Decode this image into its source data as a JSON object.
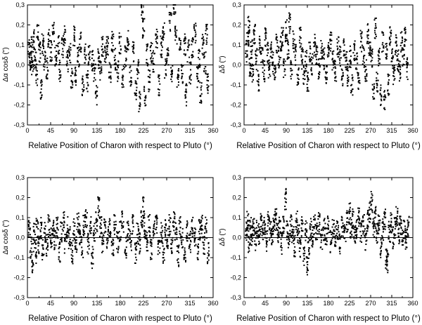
{
  "chart_data": [
    {
      "type": "scatter",
      "id": "top-left",
      "xlabel": "Relative Position of Charon with respect to Pluto (°)",
      "ylabel": "Δα cosδ (\")",
      "xlim": [
        0,
        360
      ],
      "ylim": [
        -0.3,
        0.3
      ],
      "xticks": [
        0,
        45,
        90,
        135,
        180,
        225,
        270,
        315,
        360
      ],
      "yticks": [
        "-0,3",
        "-0,2",
        "-0,1",
        "0,0",
        "0,1",
        "0,2",
        "0,3"
      ],
      "zero_line": true,
      "points": [
        [
          3,
          0.07
        ],
        [
          5,
          0.02
        ],
        [
          8,
          0.09
        ],
        [
          10,
          -0.02
        ],
        [
          12,
          0.12
        ],
        [
          15,
          0.04
        ],
        [
          18,
          -0.05
        ],
        [
          20,
          0.15
        ],
        [
          24,
          0.06
        ],
        [
          27,
          -0.12
        ],
        [
          30,
          0.1
        ],
        [
          33,
          0.03
        ],
        [
          38,
          -0.02
        ],
        [
          42,
          0.13
        ],
        [
          46,
          0.07
        ],
        [
          50,
          0.16
        ],
        [
          55,
          0.05
        ],
        [
          60,
          0.11
        ],
        [
          63,
          -0.03
        ],
        [
          68,
          0.09
        ],
        [
          72,
          0.14
        ],
        [
          77,
          0.02
        ],
        [
          82,
          0.06
        ],
        [
          86,
          -0.07
        ],
        [
          90,
          0.15
        ],
        [
          94,
          -0.05
        ],
        [
          99,
          0.04
        ],
        [
          103,
          0.12
        ],
        [
          108,
          -0.1
        ],
        [
          112,
          0.06
        ],
        [
          116,
          -0.08
        ],
        [
          120,
          0.05
        ],
        [
          125,
          0.02
        ],
        [
          130,
          -0.03
        ],
        [
          134,
          -0.15
        ],
        [
          138,
          0.03
        ],
        [
          142,
          -0.02
        ],
        [
          146,
          0.09
        ],
        [
          151,
          0.06
        ],
        [
          155,
          0.1
        ],
        [
          160,
          -0.04
        ],
        [
          165,
          0.12
        ],
        [
          170,
          0.03
        ],
        [
          175,
          -0.03
        ],
        [
          180,
          0.11
        ],
        [
          185,
          -0.06
        ],
        [
          190,
          0.04
        ],
        [
          195,
          0.12
        ],
        [
          200,
          -0.05
        ],
        [
          205,
          0.07
        ],
        [
          210,
          -0.12
        ],
        [
          214,
          -0.02
        ],
        [
          218,
          -0.18
        ],
        [
          222,
          0.28
        ],
        [
          225,
          0.19
        ],
        [
          228,
          -0.15
        ],
        [
          232,
          0.05
        ],
        [
          236,
          -0.08
        ],
        [
          240,
          0.06
        ],
        [
          245,
          0.02
        ],
        [
          250,
          0.13
        ],
        [
          255,
          -0.1
        ],
        [
          260,
          0.09
        ],
        [
          264,
          0.16
        ],
        [
          268,
          -0.02
        ],
        [
          272,
          0.05
        ],
        [
          277,
          0.22
        ],
        [
          280,
          -0.03
        ],
        [
          285,
          0.29
        ],
        [
          288,
          0.15
        ],
        [
          292,
          -0.07
        ],
        [
          296,
          0.12
        ],
        [
          300,
          -0.04
        ],
        [
          305,
          0.1
        ],
        [
          308,
          -0.15
        ],
        [
          312,
          0.07
        ],
        [
          316,
          -0.04
        ],
        [
          320,
          0.08
        ],
        [
          325,
          0.16
        ],
        [
          330,
          -0.06
        ],
        [
          333,
          0.04
        ],
        [
          336,
          -0.14
        ],
        [
          340,
          0.1
        ],
        [
          344,
          0.01
        ],
        [
          347,
          0.15
        ],
        [
          350,
          -0.1
        ]
      ]
    },
    {
      "type": "scatter",
      "id": "top-right",
      "xlabel": "Relative Position of Charon with respect to Pluto (°)",
      "ylabel": "Δδ (\")",
      "xlim": [
        0,
        360
      ],
      "ylim": [
        -0.3,
        0.3
      ],
      "xticks": [
        0,
        45,
        90,
        135,
        180,
        225,
        270,
        315,
        360
      ],
      "yticks": [
        "-0,3",
        "-0,2",
        "-0,1",
        "0,0",
        "0,1",
        "0,2",
        "0,3"
      ],
      "zero_line": true,
      "points": [
        [
          5,
          0.07
        ],
        [
          8,
          0.12
        ],
        [
          10,
          0.21
        ],
        [
          13,
          -0.01
        ],
        [
          16,
          0.08
        ],
        [
          18,
          -0.05
        ],
        [
          22,
          0.15
        ],
        [
          26,
          0.03
        ],
        [
          30,
          -0.08
        ],
        [
          34,
          0.1
        ],
        [
          38,
          0.04
        ],
        [
          42,
          -0.03
        ],
        [
          46,
          0.13
        ],
        [
          50,
          0.06
        ],
        [
          54,
          -0.02
        ],
        [
          58,
          0.09
        ],
        [
          62,
          0.01
        ],
        [
          66,
          -0.06
        ],
        [
          70,
          0.11
        ],
        [
          74,
          0.04
        ],
        [
          78,
          0.09
        ],
        [
          82,
          0.14
        ],
        [
          86,
          -0.02
        ],
        [
          90,
          0.17
        ],
        [
          94,
          0.07
        ],
        [
          97,
          0.21
        ],
        [
          101,
          -0.03
        ],
        [
          106,
          0.12
        ],
        [
          110,
          0.05
        ],
        [
          115,
          -0.06
        ],
        [
          120,
          0.14
        ],
        [
          124,
          0.03
        ],
        [
          128,
          -0.05
        ],
        [
          132,
          0.02
        ],
        [
          136,
          -0.09
        ],
        [
          140,
          0.06
        ],
        [
          145,
          0.0
        ],
        [
          150,
          0.1
        ],
        [
          155,
          0.04
        ],
        [
          160,
          -0.02
        ],
        [
          165,
          0.08
        ],
        [
          170,
          0.03
        ],
        [
          175,
          -0.04
        ],
        [
          180,
          0.07
        ],
        [
          185,
          0.11
        ],
        [
          190,
          0.02
        ],
        [
          195,
          -0.03
        ],
        [
          200,
          0.09
        ],
        [
          205,
          0.05
        ],
        [
          210,
          -0.06
        ],
        [
          214,
          0.08
        ],
        [
          218,
          0.02
        ],
        [
          222,
          -0.05
        ],
        [
          226,
          0.04
        ],
        [
          230,
          -0.1
        ],
        [
          235,
          0.07
        ],
        [
          240,
          0.01
        ],
        [
          245,
          -0.07
        ],
        [
          250,
          0.12
        ],
        [
          255,
          0.04
        ],
        [
          260,
          -0.03
        ],
        [
          264,
          0.15
        ],
        [
          268,
          0.09
        ],
        [
          272,
          0.03
        ],
        [
          276,
          -0.12
        ],
        [
          280,
          0.18
        ],
        [
          284,
          -0.08
        ],
        [
          288,
          0.05
        ],
        [
          292,
          -0.15
        ],
        [
          296,
          0.12
        ],
        [
          300,
          -0.17
        ],
        [
          304,
          0.06
        ],
        [
          308,
          -0.1
        ],
        [
          312,
          0.15
        ],
        [
          316,
          0.03
        ],
        [
          320,
          -0.05
        ],
        [
          324,
          0.1
        ],
        [
          328,
          0.02
        ],
        [
          332,
          -0.03
        ],
        [
          336,
          0.12
        ],
        [
          340,
          0.05
        ],
        [
          344,
          0.14
        ],
        [
          348,
          -0.02
        ]
      ]
    },
    {
      "type": "scatter",
      "id": "bottom-left",
      "xlabel": "Relative Position of Charon with respect to Pluto (°)",
      "ylabel": "Δα cosδ (\")",
      "xlim": [
        0,
        360
      ],
      "ylim": [
        -0.3,
        0.3
      ],
      "xticks": [
        0,
        45,
        90,
        135,
        180,
        225,
        270,
        315,
        360
      ],
      "yticks": [
        "-0,3",
        "-0,2",
        "-0,1",
        "0,0",
        "0,1",
        "0,2",
        "0,3"
      ],
      "zero_line": true,
      "points": [
        [
          4,
          0.03
        ],
        [
          7,
          -0.05
        ],
        [
          10,
          -0.12
        ],
        [
          13,
          0.02
        ],
        [
          16,
          -0.08
        ],
        [
          19,
          0.04
        ],
        [
          22,
          -0.03
        ],
        [
          26,
          0.05
        ],
        [
          30,
          -0.06
        ],
        [
          34,
          0.02
        ],
        [
          38,
          -0.04
        ],
        [
          42,
          0.06
        ],
        [
          46,
          0.0
        ],
        [
          50,
          0.04
        ],
        [
          54,
          -0.02
        ],
        [
          58,
          0.05
        ],
        [
          62,
          -0.07
        ],
        [
          66,
          0.03
        ],
        [
          70,
          0.08
        ],
        [
          74,
          -0.03
        ],
        [
          78,
          0.05
        ],
        [
          82,
          0.0
        ],
        [
          86,
          -0.08
        ],
        [
          90,
          0.04
        ],
        [
          94,
          -0.04
        ],
        [
          98,
          0.07
        ],
        [
          102,
          0.02
        ],
        [
          106,
          -0.05
        ],
        [
          110,
          0.06
        ],
        [
          114,
          0.1
        ],
        [
          118,
          -0.03
        ],
        [
          122,
          0.05
        ],
        [
          126,
          -0.1
        ],
        [
          130,
          0.03
        ],
        [
          134,
          0.08
        ],
        [
          138,
          0.15
        ],
        [
          142,
          0.05
        ],
        [
          146,
          -0.02
        ],
        [
          150,
          0.06
        ],
        [
          155,
          0.0
        ],
        [
          160,
          0.04
        ],
        [
          165,
          -0.04
        ],
        [
          170,
          0.07
        ],
        [
          175,
          -0.02
        ],
        [
          180,
          0.03
        ],
        [
          185,
          0.08
        ],
        [
          190,
          -0.05
        ],
        [
          195,
          0.04
        ],
        [
          200,
          -0.01
        ],
        [
          205,
          0.06
        ],
        [
          210,
          -0.08
        ],
        [
          214,
          0.02
        ],
        [
          218,
          -0.03
        ],
        [
          222,
          0.08
        ],
        [
          225,
          0.15
        ],
        [
          228,
          0.05
        ],
        [
          232,
          -0.02
        ],
        [
          236,
          0.06
        ],
        [
          240,
          -0.06
        ],
        [
          245,
          0.03
        ],
        [
          250,
          0.07
        ],
        [
          255,
          -0.04
        ],
        [
          260,
          0.02
        ],
        [
          264,
          -0.08
        ],
        [
          268,
          0.04
        ],
        [
          272,
          0.0
        ],
        [
          276,
          0.06
        ],
        [
          280,
          -0.03
        ],
        [
          284,
          0.09
        ],
        [
          288,
          0.03
        ],
        [
          292,
          -0.09
        ],
        [
          296,
          0.05
        ],
        [
          300,
          0.0
        ],
        [
          305,
          -0.07
        ],
        [
          310,
          0.03
        ],
        [
          315,
          -0.02
        ],
        [
          320,
          0.06
        ],
        [
          325,
          0.01
        ],
        [
          330,
          -0.06
        ],
        [
          334,
          0.04
        ],
        [
          338,
          0.07
        ],
        [
          342,
          -0.03
        ],
        [
          346,
          0.05
        ],
        [
          350,
          -0.08
        ]
      ]
    },
    {
      "type": "scatter",
      "id": "bottom-right",
      "xlabel": "Relative Position of Charon with respect to Pluto (°)",
      "ylabel": "Δδ (\")",
      "xlim": [
        0,
        360
      ],
      "ylim": [
        -0.3,
        0.3
      ],
      "xticks": [
        0,
        45,
        90,
        135,
        180,
        225,
        270,
        315,
        360
      ],
      "yticks": [
        "-0,3",
        "-0,2",
        "-0,1",
        "0,0",
        "0,1",
        "0,2",
        "0,3"
      ],
      "zero_line": true,
      "points": [
        [
          5,
          0.04
        ],
        [
          8,
          0.08
        ],
        [
          11,
          -0.02
        ],
        [
          14,
          0.05
        ],
        [
          17,
          0.01
        ],
        [
          20,
          0.06
        ],
        [
          24,
          -0.01
        ],
        [
          28,
          0.04
        ],
        [
          32,
          0.02
        ],
        [
          36,
          0.07
        ],
        [
          40,
          0.03
        ],
        [
          44,
          0.05
        ],
        [
          48,
          -0.02
        ],
        [
          52,
          0.08
        ],
        [
          56,
          0.04
        ],
        [
          60,
          0.01
        ],
        [
          64,
          0.06
        ],
        [
          68,
          0.09
        ],
        [
          72,
          0.02
        ],
        [
          76,
          0.05
        ],
        [
          80,
          -0.03
        ],
        [
          84,
          0.07
        ],
        [
          88,
          0.19
        ],
        [
          92,
          0.04
        ],
        [
          96,
          0.0
        ],
        [
          100,
          0.06
        ],
        [
          104,
          0.03
        ],
        [
          108,
          -0.04
        ],
        [
          112,
          0.08
        ],
        [
          116,
          0.02
        ],
        [
          120,
          -0.06
        ],
        [
          124,
          0.05
        ],
        [
          128,
          -0.1
        ],
        [
          132,
          0.03
        ],
        [
          135,
          -0.15
        ],
        [
          138,
          -0.05
        ],
        [
          142,
          0.04
        ],
        [
          146,
          0.0
        ],
        [
          150,
          0.06
        ],
        [
          155,
          0.03
        ],
        [
          160,
          0.07
        ],
        [
          165,
          -0.01
        ],
        [
          170,
          0.04
        ],
        [
          175,
          0.02
        ],
        [
          180,
          0.06
        ],
        [
          185,
          -0.02
        ],
        [
          190,
          0.05
        ],
        [
          195,
          0.01
        ],
        [
          200,
          0.03
        ],
        [
          205,
          -0.03
        ],
        [
          210,
          0.06
        ],
        [
          215,
          0.02
        ],
        [
          220,
          0.08
        ],
        [
          225,
          0.12
        ],
        [
          228,
          0.04
        ],
        [
          232,
          0.09
        ],
        [
          236,
          0.01
        ],
        [
          240,
          0.05
        ],
        [
          245,
          0.1
        ],
        [
          250,
          0.03
        ],
        [
          255,
          0.06
        ],
        [
          260,
          -0.01
        ],
        [
          264,
          0.08
        ],
        [
          268,
          0.13
        ],
        [
          272,
          0.18
        ],
        [
          276,
          0.05
        ],
        [
          280,
          0.1
        ],
        [
          284,
          0.02
        ],
        [
          288,
          0.07
        ],
        [
          292,
          -0.05
        ],
        [
          296,
          0.04
        ],
        [
          300,
          0.09
        ],
        [
          304,
          -0.1
        ],
        [
          306,
          -0.12
        ],
        [
          310,
          0.03
        ],
        [
          314,
          0.07
        ],
        [
          318,
          0.0
        ],
        [
          322,
          0.05
        ],
        [
          326,
          0.1
        ],
        [
          330,
          0.02
        ],
        [
          334,
          0.06
        ],
        [
          338,
          0.01
        ],
        [
          342,
          0.04
        ],
        [
          346,
          -0.01
        ],
        [
          350,
          0.06
        ]
      ]
    }
  ]
}
